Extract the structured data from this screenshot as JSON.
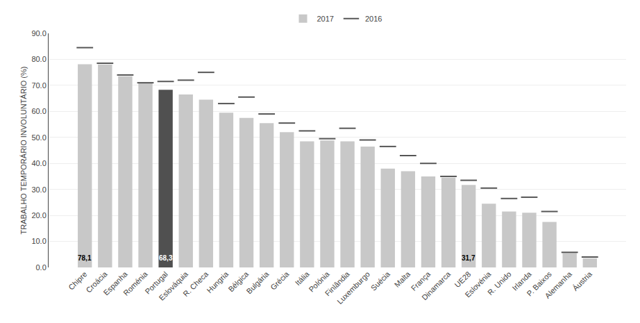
{
  "chart_data": {
    "type": "bar",
    "categories": [
      "Chipre",
      "Croácia",
      "Espanha",
      "Roménia",
      "Portugal",
      "Eslováquia",
      "R. Checa",
      "Hungria",
      "Bélgica",
      "Bulgária",
      "Grécia",
      "Itália",
      "Polónia",
      "Finlândia",
      "Luxemburgo",
      "Suécia",
      "Malta",
      "França",
      "Dinamarca",
      "UE28",
      "Eslovénia",
      "R. Unido",
      "Irlanda",
      "P. Baixos",
      "Alemanha",
      "Áustria"
    ],
    "series": [
      {
        "name": "2017",
        "type": "bar",
        "colors": [
          "#c8c8c8",
          "#c8c8c8",
          "#c8c8c8",
          "#c8c8c8",
          "#505050",
          "#c8c8c8",
          "#c8c8c8",
          "#c8c8c8",
          "#c8c8c8",
          "#c8c8c8",
          "#c8c8c8",
          "#c8c8c8",
          "#c8c8c8",
          "#c8c8c8",
          "#c8c8c8",
          "#c8c8c8",
          "#c8c8c8",
          "#c8c8c8",
          "#c8c8c8",
          "#c8c8c8",
          "#c8c8c8",
          "#c8c8c8",
          "#c8c8c8",
          "#c8c8c8",
          "#c8c8c8",
          "#c8c8c8"
        ],
        "values": [
          78.1,
          78.0,
          73.5,
          70.8,
          68.3,
          66.5,
          64.5,
          59.5,
          57.5,
          55.5,
          52.0,
          48.5,
          48.8,
          48.5,
          46.5,
          38.0,
          37.0,
          35.0,
          34.5,
          31.7,
          24.5,
          21.5,
          21.0,
          17.5,
          5.5,
          3.5
        ]
      },
      {
        "name": "2016",
        "type": "scatter",
        "marker": "line-ew",
        "color": "#555555",
        "values": [
          84.5,
          78.5,
          74.0,
          71.0,
          71.5,
          72.0,
          75.0,
          63.0,
          65.5,
          59.0,
          55.5,
          52.5,
          49.5,
          53.5,
          49.0,
          46.5,
          43.0,
          40.0,
          35.0,
          33.5,
          30.5,
          26.5,
          27.0,
          21.5,
          5.8,
          4.0
        ]
      }
    ],
    "annotations": [
      {
        "x": "Chipre",
        "text": "78,1",
        "color": "black"
      },
      {
        "x": "Portugal",
        "text": "68,3",
        "color": "white"
      },
      {
        "x": "UE28",
        "text": "31,7",
        "color": "black"
      }
    ],
    "ylabel": "TRABALHO TEMPORÁRIO INVOLUNTÁRIO (%)",
    "ylim": [
      0,
      90
    ],
    "yticks": [
      {
        "value": 0,
        "label": "0.0"
      },
      {
        "value": 10,
        "label": "10.0"
      },
      {
        "value": 20,
        "label": "20.0"
      },
      {
        "value": 30,
        "label": "30.0"
      },
      {
        "value": 40,
        "label": "40.0"
      },
      {
        "value": 50,
        "label": "50.0"
      },
      {
        "value": 60,
        "label": "60.0"
      },
      {
        "value": 70,
        "label": "70.0"
      },
      {
        "value": 80,
        "label": "80.0"
      },
      {
        "value": 90,
        "label": "90.0"
      }
    ],
    "grid": true,
    "legend": "top"
  }
}
